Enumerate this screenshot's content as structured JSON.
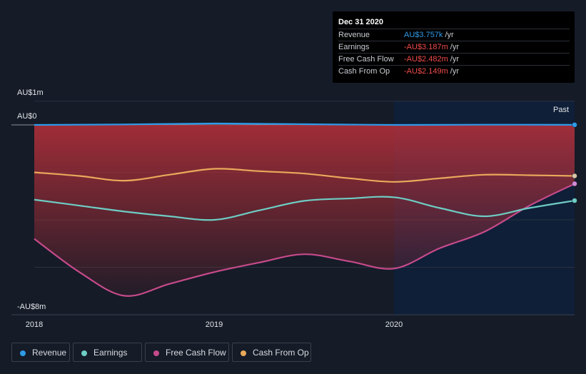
{
  "tooltip": {
    "date": "Dec 31 2020",
    "rows": [
      {
        "label": "Revenue",
        "value": "AU$3.757k",
        "unit": "/yr",
        "color": "#2f9ae8"
      },
      {
        "label": "Earnings",
        "value": "-AU$3.187m",
        "unit": "/yr",
        "color": "#f04b4b"
      },
      {
        "label": "Free Cash Flow",
        "value": "-AU$2.482m",
        "unit": "/yr",
        "color": "#f04b4b"
      },
      {
        "label": "Cash From Op",
        "value": "-AU$2.149m",
        "unit": "/yr",
        "color": "#f04b4b"
      }
    ]
  },
  "past_label": "Past",
  "colors": {
    "background": "#151b27",
    "forecast_region": "#0f1f38",
    "revenue": "#2f9ae8",
    "earnings": "#6ecdc4",
    "free_cash_flow": "#c64a8b",
    "cash_from_op": "#e9a95b",
    "loss_fill": "#b8303a"
  },
  "legend": [
    {
      "label": "Revenue",
      "color": "#2f9ae8"
    },
    {
      "label": "Earnings",
      "color": "#6ecdc4"
    },
    {
      "label": "Free Cash Flow",
      "color": "#c64a8b"
    },
    {
      "label": "Cash From Op",
      "color": "#e9a95b"
    }
  ],
  "chart_data": {
    "type": "line",
    "title": "",
    "xlabel": "",
    "ylabel": "",
    "y_tick_labels": [
      "AU$1m",
      "AU$0",
      "-AU$8m"
    ],
    "x_tick_labels": [
      "2018",
      "2019",
      "2020"
    ],
    "xlim": [
      2018.0,
      2021.0
    ],
    "ylim": [
      -8.0,
      1.0
    ],
    "unit": "AU$m",
    "highlight_from": 2020.0,
    "series": [
      {
        "name": "Revenue",
        "x": [
          2018.0,
          2018.5,
          2019.0,
          2019.5,
          2020.0,
          2020.5,
          2021.0
        ],
        "y": [
          0.0,
          0.02,
          0.06,
          0.03,
          0.0,
          0.01,
          0.004
        ]
      },
      {
        "name": "Earnings",
        "x": [
          2018.0,
          2018.25,
          2018.5,
          2018.75,
          2019.0,
          2019.25,
          2019.5,
          2019.75,
          2020.0,
          2020.25,
          2020.5,
          2020.75,
          2021.0
        ],
        "y": [
          -3.15,
          -3.4,
          -3.65,
          -3.85,
          -4.0,
          -3.6,
          -3.2,
          -3.1,
          -3.05,
          -3.5,
          -3.85,
          -3.5,
          -3.19
        ]
      },
      {
        "name": "Free Cash Flow",
        "x": [
          2018.0,
          2018.25,
          2018.5,
          2018.75,
          2019.0,
          2019.25,
          2019.5,
          2019.75,
          2020.0,
          2020.25,
          2020.5,
          2020.75,
          2021.0
        ],
        "y": [
          -4.8,
          -6.2,
          -7.2,
          -6.7,
          -6.2,
          -5.8,
          -5.45,
          -5.75,
          -6.05,
          -5.2,
          -4.5,
          -3.4,
          -2.48
        ]
      },
      {
        "name": "Cash From Op",
        "x": [
          2018.0,
          2018.25,
          2018.5,
          2018.75,
          2019.0,
          2019.25,
          2019.5,
          2019.75,
          2020.0,
          2020.25,
          2020.5,
          2020.75,
          2021.0
        ],
        "y": [
          -2.0,
          -2.15,
          -2.35,
          -2.1,
          -1.85,
          -1.95,
          -2.05,
          -2.25,
          -2.4,
          -2.25,
          -2.1,
          -2.12,
          -2.15
        ]
      }
    ],
    "grid": true,
    "legend_position": "bottom-left"
  }
}
